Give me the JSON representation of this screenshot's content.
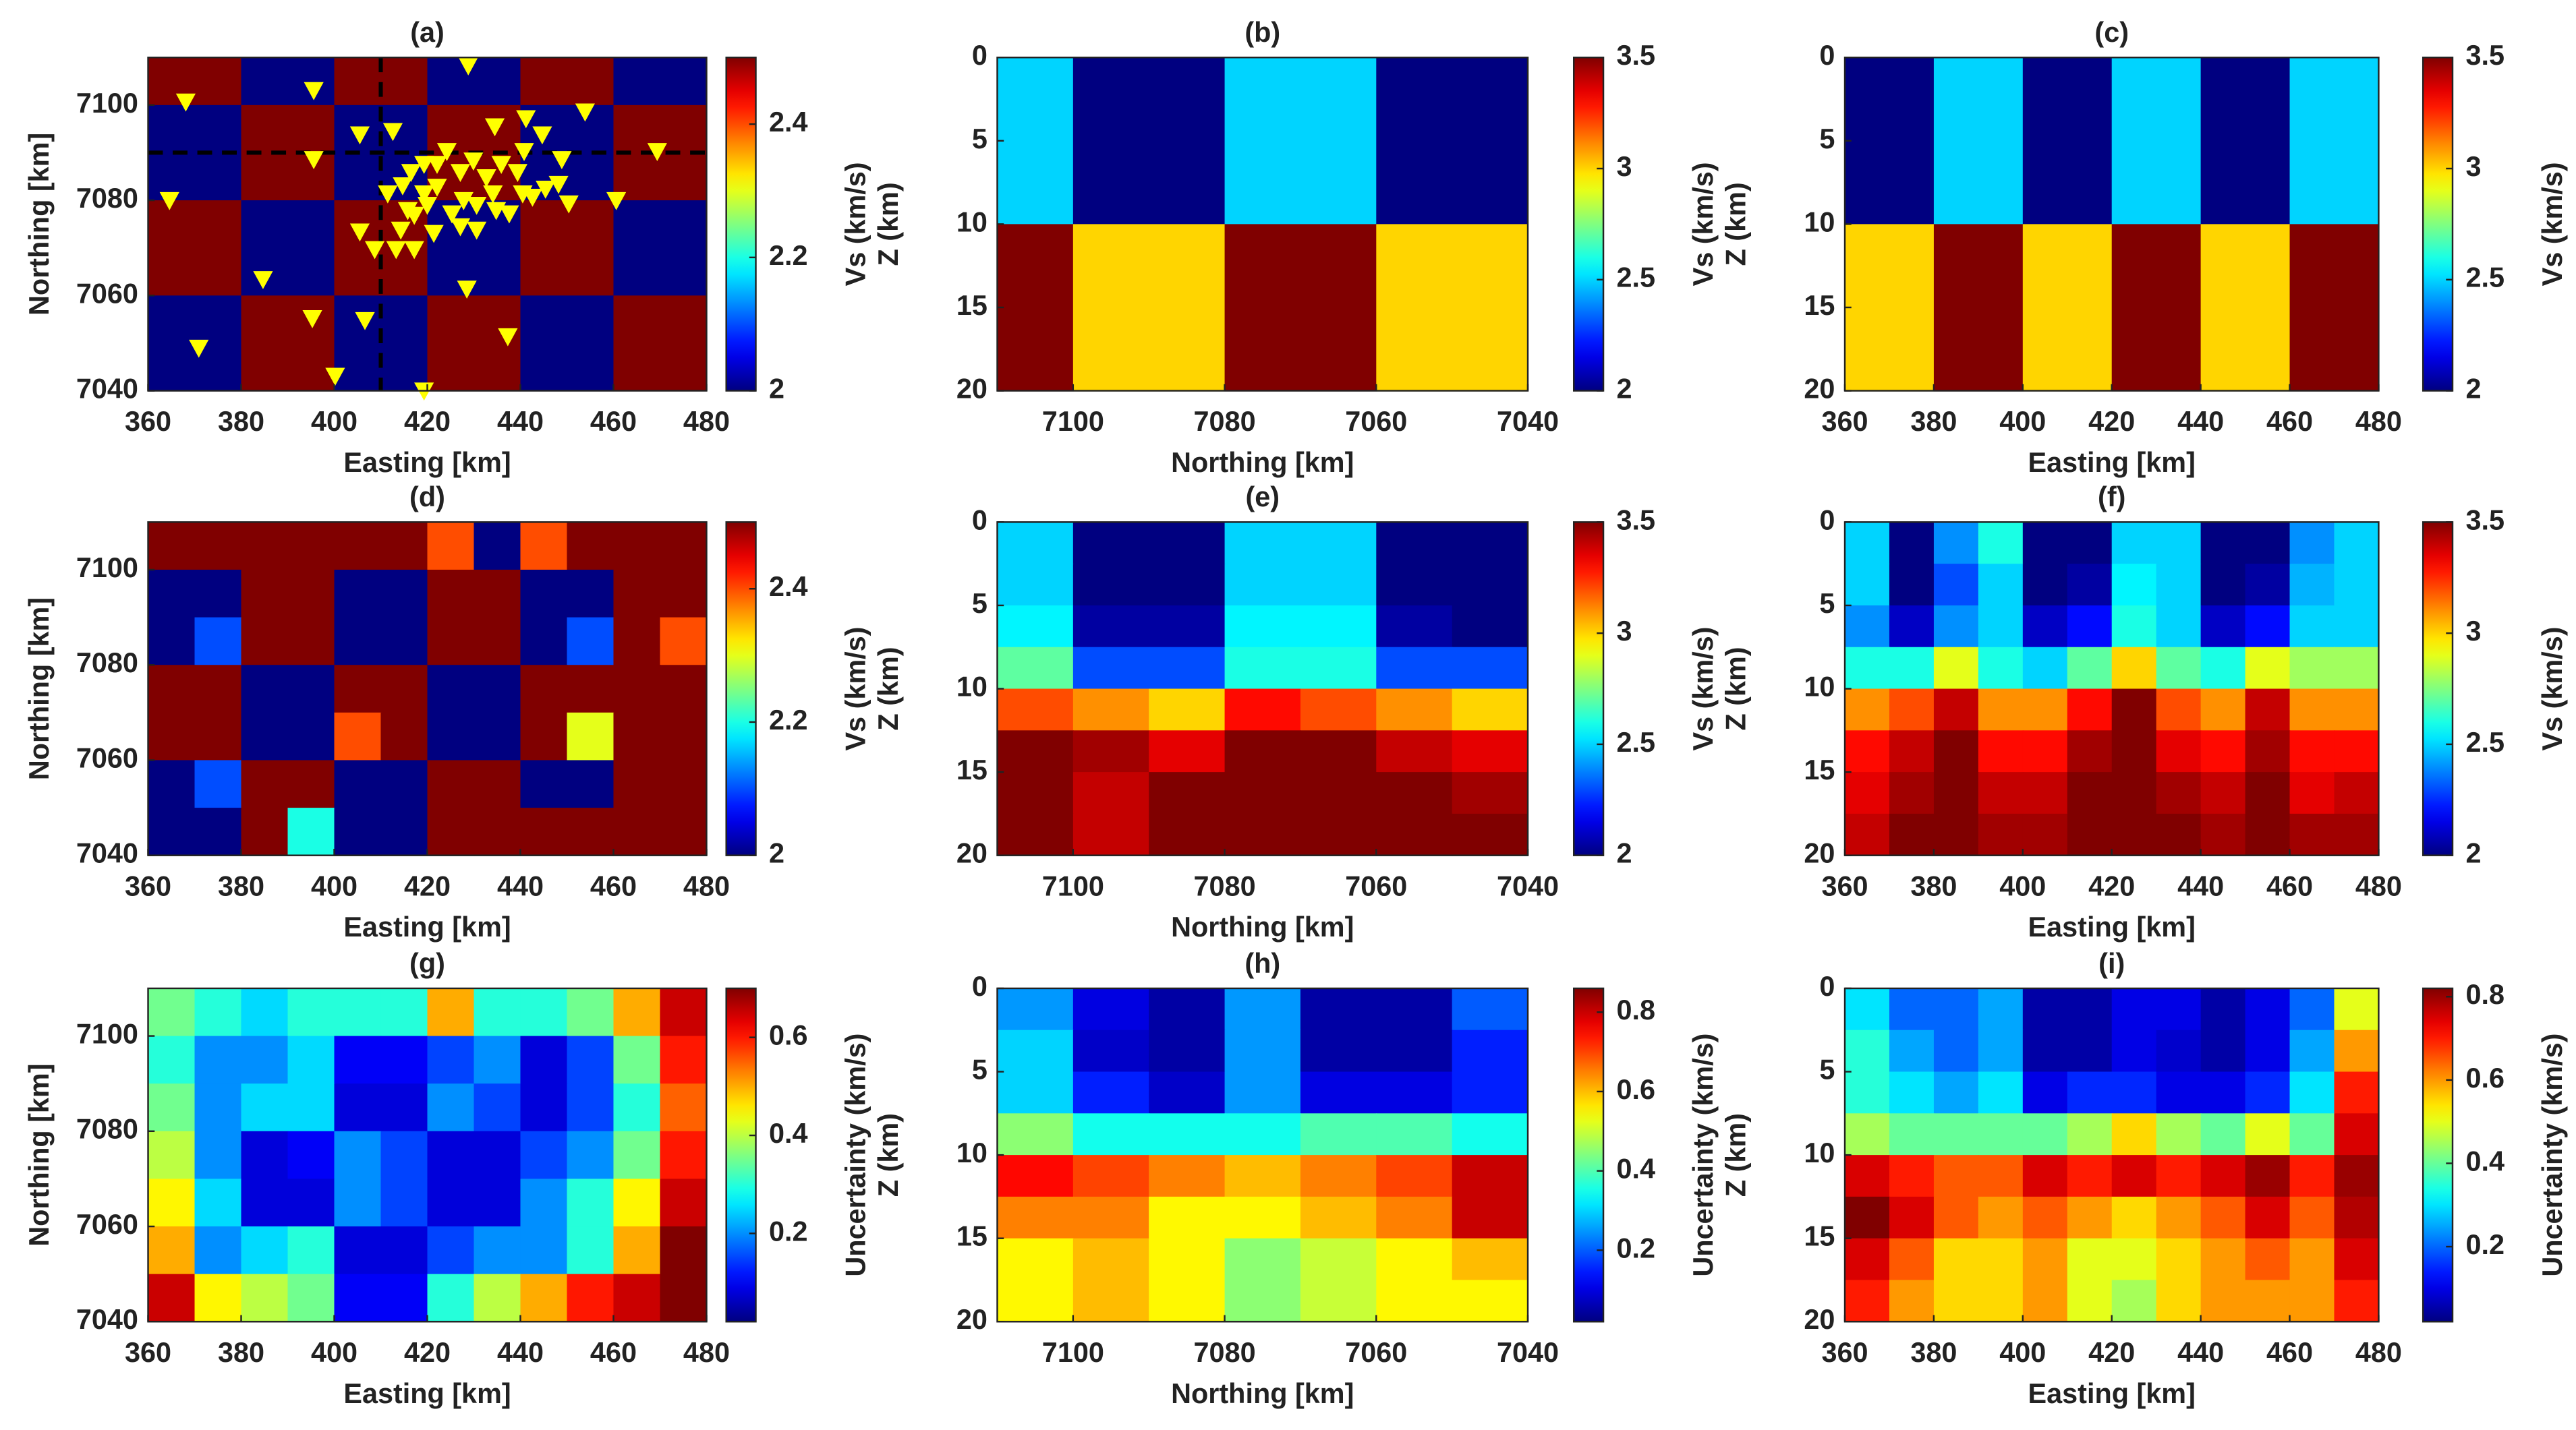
{
  "chart_data": [
    {
      "type": "heatmap",
      "title": "(a)",
      "xlabel": "Easting [km]",
      "ylabel": "Northing [km]",
      "clabel": "Vs (km/s)",
      "colormap": "jet",
      "xlim": [
        360,
        480
      ],
      "ylim": [
        7040,
        7110
      ],
      "xticks": [
        360,
        380,
        400,
        420,
        440,
        460,
        480
      ],
      "yticks": [
        7040,
        7060,
        7080,
        7100
      ],
      "clim": [
        2,
        2.5
      ],
      "cticks": [
        2,
        2.2,
        2.4
      ],
      "x": [
        360,
        380,
        400,
        420,
        440,
        460,
        480
      ],
      "y": [
        7110,
        7100,
        7080,
        7060,
        7040
      ],
      "values": [
        [
          2.5,
          2,
          2.5,
          2,
          2.5,
          2
        ],
        [
          2,
          2.5,
          2,
          2.5,
          2,
          2.5
        ],
        [
          2.5,
          2,
          2.5,
          2,
          2.5,
          2
        ],
        [
          2,
          2.5,
          2,
          2.5,
          2,
          2.5
        ]
      ],
      "profile_lines": {
        "x": 410,
        "y": 7090
      },
      "stations": {
        "color": "#ffff00",
        "x": [
          368.1,
          370.9,
          364.6,
          384.7,
          395.6,
          395.6,
          395.3,
          400.2,
          405.5,
          405.5,
          406.6,
          412.6,
          413.3,
          419.3,
          428.8,
          428.5,
          434.5,
          437.3,
          441.2,
          440.8,
          448.9,
          453.9,
          460.6,
          469.4,
          444.7,
          448.2,
          450.4,
          445.4,
          442.6,
          439.4,
          435.9,
          432.7,
          429.9,
          427.1,
          424.2,
          422.1,
          419.3,
          416.5,
          414.7,
          415.8,
          414.3,
          417.2,
          420.0,
          421.4,
          425.3,
          427.8,
          430.6,
          434.1,
          437.6,
          440.5,
          419.3,
          417.2,
          422.1,
          427.1,
          430.6,
          434.8,
          408.7,
          411.5
        ],
        "y": [
          7100.7,
          7049.0,
          7080.0,
          7063.4,
          7088.6,
          7103.1,
          7055.2,
          7043.1,
          7093.8,
          7073.4,
          7054.8,
          7094.5,
          7069.7,
          7040.0,
          7108.3,
          7061.4,
          7095.5,
          7051.4,
          7097.2,
          7090.3,
          7088.6,
          7098.6,
          7080.0,
          7090.3,
          7093.8,
          7083.4,
          7079.3,
          7082.4,
          7080.7,
          7085.9,
          7087.6,
          7084.8,
          7088.3,
          7085.9,
          7090.3,
          7082.8,
          7087.6,
          7085.9,
          7083.1,
          7077.9,
          7073.8,
          7076.9,
          7079.0,
          7073.1,
          7077.2,
          7080.0,
          7079.0,
          7081.4,
          7077.2,
          7081.4,
          7081.4,
          7069.7,
          7087.6,
          7074.5,
          7073.8,
          7077.9,
          7069.7,
          7081.4
        ]
      }
    },
    {
      "type": "heatmap",
      "title": "(b)",
      "xlabel": "Northing [km]",
      "ylabel": "Z (km)",
      "clabel": "Vs (km/s)",
      "colormap": "jet",
      "xlim": [
        7110,
        7040
      ],
      "ylim": [
        20,
        0
      ],
      "xticks": [
        7100,
        7080,
        7060,
        7040
      ],
      "yticks": [
        0,
        5,
        10,
        15,
        20
      ],
      "clim": [
        2,
        3.5
      ],
      "cticks": [
        2,
        2.5,
        3,
        3.5
      ],
      "x": [
        7110,
        7100,
        7080,
        7060,
        7040
      ],
      "y": [
        0,
        10,
        20
      ],
      "values": [
        [
          2.5,
          2,
          2.5,
          2
        ],
        [
          3.5,
          3,
          3.5,
          3
        ]
      ]
    },
    {
      "type": "heatmap",
      "title": "(c)",
      "xlabel": "Easting [km]",
      "ylabel": "Z (km)",
      "clabel": "Vs (km/s)",
      "colormap": "jet",
      "xlim": [
        360,
        480
      ],
      "ylim": [
        20,
        0
      ],
      "xticks": [
        360,
        380,
        400,
        420,
        440,
        460,
        480
      ],
      "yticks": [
        0,
        5,
        10,
        15,
        20
      ],
      "clim": [
        2,
        3.5
      ],
      "cticks": [
        2,
        2.5,
        3,
        3.5
      ],
      "x": [
        360,
        380,
        400,
        420,
        440,
        460,
        480
      ],
      "y": [
        0,
        10,
        20
      ],
      "values": [
        [
          2,
          2.5,
          2,
          2.5,
          2,
          2.5
        ],
        [
          3,
          3.5,
          3,
          3.5,
          3,
          3.5
        ]
      ]
    },
    {
      "type": "heatmap",
      "title": "(d)",
      "xlabel": "Easting [km]",
      "ylabel": "Northing [km]",
      "clabel": "Vs (km/s)",
      "colormap": "jet",
      "xlim": [
        360,
        480
      ],
      "ylim": [
        7040,
        7110
      ],
      "xticks": [
        360,
        380,
        400,
        420,
        440,
        460,
        480
      ],
      "yticks": [
        7040,
        7060,
        7080,
        7100
      ],
      "clim": [
        2,
        2.5
      ],
      "cticks": [
        2,
        2.2,
        2.4
      ],
      "x": [
        360,
        370,
        380,
        390,
        400,
        410,
        420,
        430,
        440,
        450,
        460,
        470,
        480
      ],
      "y": [
        7110,
        7100,
        7090,
        7080,
        7070,
        7060,
        7050,
        7040
      ],
      "values": [
        [
          2.5,
          2.5,
          2.5,
          2.5,
          2.5,
          2.5,
          2.4,
          2.0,
          2.4,
          2.5,
          2.5,
          2.5
        ],
        [
          2.0,
          2.0,
          2.5,
          2.5,
          2.0,
          2.0,
          2.5,
          2.5,
          2.0,
          2.0,
          2.5,
          2.5
        ],
        [
          2.0,
          2.1,
          2.5,
          2.5,
          2.0,
          2.0,
          2.5,
          2.5,
          2.0,
          2.1,
          2.5,
          2.4
        ],
        [
          2.5,
          2.5,
          2.0,
          2.0,
          2.5,
          2.5,
          2.0,
          2.0,
          2.5,
          2.5,
          2.5,
          2.5
        ],
        [
          2.5,
          2.5,
          2.0,
          2.0,
          2.4,
          2.5,
          2.0,
          2.0,
          2.5,
          2.3,
          2.5,
          2.5
        ],
        [
          2.0,
          2.1,
          2.5,
          2.5,
          2.0,
          2.0,
          2.5,
          2.5,
          2.0,
          2.0,
          2.5,
          2.5
        ],
        [
          2.0,
          2.0,
          2.5,
          2.2,
          2.0,
          2.0,
          2.5,
          2.5,
          2.5,
          2.5,
          2.5,
          2.5
        ]
      ]
    },
    {
      "type": "heatmap",
      "title": "(e)",
      "xlabel": "Northing [km]",
      "ylabel": "Z (km)",
      "clabel": "Vs (km/s)",
      "colormap": "jet",
      "xlim": [
        7110,
        7040
      ],
      "ylim": [
        20,
        0
      ],
      "xticks": [
        7100,
        7080,
        7060,
        7040
      ],
      "yticks": [
        0,
        5,
        10,
        15,
        20
      ],
      "clim": [
        2,
        3.5
      ],
      "cticks": [
        2,
        2.5,
        3,
        3.5
      ],
      "x": [
        7110,
        7100,
        7090,
        7080,
        7070,
        7060,
        7050,
        7040
      ],
      "y": [
        0,
        2.5,
        5,
        7.5,
        10,
        12.5,
        15,
        17.5,
        20
      ],
      "values": [
        [
          2.5,
          2.0,
          2.0,
          2.5,
          2.5,
          2.0,
          2.0
        ],
        [
          2.5,
          2.0,
          2.0,
          2.5,
          2.5,
          2.0,
          2.0
        ],
        [
          2.55,
          2.05,
          2.05,
          2.55,
          2.55,
          2.05,
          2.0
        ],
        [
          2.7,
          2.3,
          2.3,
          2.6,
          2.6,
          2.3,
          2.3
        ],
        [
          3.2,
          3.1,
          3.0,
          3.3,
          3.2,
          3.1,
          3.0
        ],
        [
          3.5,
          3.45,
          3.35,
          3.5,
          3.5,
          3.4,
          3.35
        ],
        [
          3.5,
          3.4,
          3.5,
          3.5,
          3.5,
          3.5,
          3.45
        ],
        [
          3.5,
          3.4,
          3.5,
          3.5,
          3.5,
          3.5,
          3.5
        ]
      ]
    },
    {
      "type": "heatmap",
      "title": "(f)",
      "xlabel": "Easting [km]",
      "ylabel": "Z (km)",
      "clabel": "Vs (km/s)",
      "colormap": "jet",
      "xlim": [
        360,
        480
      ],
      "ylim": [
        20,
        0
      ],
      "xticks": [
        360,
        380,
        400,
        420,
        440,
        460,
        480
      ],
      "yticks": [
        0,
        5,
        10,
        15,
        20
      ],
      "clim": [
        2,
        3.5
      ],
      "cticks": [
        2,
        2.5,
        3,
        3.5
      ],
      "x": [
        360,
        370,
        380,
        390,
        400,
        410,
        420,
        430,
        440,
        450,
        460,
        470,
        480
      ],
      "y": [
        0,
        2.5,
        5,
        7.5,
        10,
        12.5,
        15,
        17.5,
        20
      ],
      "values": [
        [
          2.5,
          2.0,
          2.4,
          2.6,
          2.0,
          2.0,
          2.5,
          2.5,
          2.0,
          2.0,
          2.4,
          2.5
        ],
        [
          2.5,
          2.0,
          2.3,
          2.5,
          2.0,
          2.05,
          2.55,
          2.5,
          2.0,
          2.05,
          2.45,
          2.5
        ],
        [
          2.4,
          2.1,
          2.4,
          2.5,
          2.1,
          2.2,
          2.6,
          2.5,
          2.1,
          2.2,
          2.5,
          2.5
        ],
        [
          2.6,
          2.6,
          2.9,
          2.6,
          2.5,
          2.7,
          3.0,
          2.7,
          2.6,
          2.9,
          2.8,
          2.8
        ],
        [
          3.1,
          3.2,
          3.4,
          3.1,
          3.1,
          3.3,
          3.5,
          3.2,
          3.1,
          3.4,
          3.1,
          3.1
        ],
        [
          3.3,
          3.4,
          3.5,
          3.3,
          3.3,
          3.45,
          3.5,
          3.35,
          3.3,
          3.45,
          3.3,
          3.3
        ],
        [
          3.35,
          3.45,
          3.5,
          3.4,
          3.4,
          3.5,
          3.5,
          3.45,
          3.4,
          3.5,
          3.35,
          3.4
        ],
        [
          3.4,
          3.5,
          3.5,
          3.45,
          3.45,
          3.5,
          3.5,
          3.5,
          3.45,
          3.5,
          3.45,
          3.45
        ]
      ]
    },
    {
      "type": "heatmap",
      "title": "(g)",
      "xlabel": "Easting [km]",
      "ylabel": "Northing [km]",
      "clabel": "Uncertainty (km/s)",
      "colormap": "jet",
      "xlim": [
        360,
        480
      ],
      "ylim": [
        7040,
        7110
      ],
      "xticks": [
        360,
        380,
        400,
        420,
        440,
        460,
        480
      ],
      "yticks": [
        7040,
        7060,
        7080,
        7100
      ],
      "clim": [
        0.02,
        0.7
      ],
      "cticks": [
        0.2,
        0.4,
        0.6
      ],
      "x": [
        360,
        370,
        380,
        390,
        400,
        410,
        420,
        430,
        440,
        450,
        460,
        470,
        480
      ],
      "y": [
        7110,
        7100,
        7090,
        7080,
        7070,
        7060,
        7050,
        7040
      ],
      "values": [
        [
          0.35,
          0.3,
          0.25,
          0.3,
          0.3,
          0.3,
          0.5,
          0.3,
          0.3,
          0.35,
          0.5,
          0.65
        ],
        [
          0.3,
          0.2,
          0.2,
          0.25,
          0.1,
          0.1,
          0.15,
          0.2,
          0.08,
          0.15,
          0.35,
          0.6
        ],
        [
          0.35,
          0.2,
          0.25,
          0.25,
          0.08,
          0.08,
          0.2,
          0.15,
          0.08,
          0.15,
          0.3,
          0.55
        ],
        [
          0.4,
          0.2,
          0.08,
          0.1,
          0.2,
          0.15,
          0.08,
          0.08,
          0.15,
          0.2,
          0.35,
          0.6
        ],
        [
          0.45,
          0.25,
          0.08,
          0.08,
          0.2,
          0.15,
          0.08,
          0.08,
          0.2,
          0.3,
          0.45,
          0.65
        ],
        [
          0.5,
          0.2,
          0.25,
          0.3,
          0.08,
          0.08,
          0.15,
          0.2,
          0.2,
          0.3,
          0.5,
          0.7
        ],
        [
          0.65,
          0.45,
          0.4,
          0.35,
          0.1,
          0.1,
          0.3,
          0.4,
          0.5,
          0.6,
          0.65,
          0.7
        ]
      ]
    },
    {
      "type": "heatmap",
      "title": "(h)",
      "xlabel": "Northing [km]",
      "ylabel": "Z (km)",
      "clabel": "Uncertainty (km/s)",
      "colormap": "jet",
      "xlim": [
        7110,
        7040
      ],
      "ylim": [
        20,
        0
      ],
      "xticks": [
        7100,
        7080,
        7060,
        7040
      ],
      "yticks": [
        0,
        5,
        10,
        15,
        20
      ],
      "clim": [
        0.02,
        0.86
      ],
      "cticks": [
        0.2,
        0.4,
        0.6,
        0.8
      ],
      "x": [
        7110,
        7100,
        7090,
        7080,
        7070,
        7060,
        7050,
        7040
      ],
      "y": [
        0,
        2.5,
        5,
        7.5,
        10,
        12.5,
        15,
        17.5,
        20
      ],
      "values": [
        [
          0.25,
          0.1,
          0.05,
          0.25,
          0.05,
          0.05,
          0.2
        ],
        [
          0.3,
          0.08,
          0.05,
          0.25,
          0.05,
          0.05,
          0.15
        ],
        [
          0.3,
          0.15,
          0.08,
          0.25,
          0.1,
          0.1,
          0.15
        ],
        [
          0.45,
          0.35,
          0.35,
          0.35,
          0.4,
          0.4,
          0.35
        ],
        [
          0.75,
          0.7,
          0.65,
          0.6,
          0.65,
          0.7,
          0.8
        ],
        [
          0.65,
          0.65,
          0.55,
          0.55,
          0.6,
          0.65,
          0.8
        ],
        [
          0.55,
          0.6,
          0.55,
          0.45,
          0.5,
          0.55,
          0.6
        ],
        [
          0.55,
          0.6,
          0.55,
          0.45,
          0.5,
          0.55,
          0.55
        ]
      ]
    },
    {
      "type": "heatmap",
      "title": "(i)",
      "xlabel": "Easting [km]",
      "ylabel": "Z (km)",
      "clabel": "Uncertainty (km/s)",
      "colormap": "jet",
      "xlim": [
        360,
        480
      ],
      "ylim": [
        20,
        0
      ],
      "xticks": [
        360,
        380,
        400,
        420,
        440,
        460,
        480
      ],
      "yticks": [
        0,
        5,
        10,
        15,
        20
      ],
      "clim": [
        0.02,
        0.82
      ],
      "cticks": [
        0.2,
        0.4,
        0.6,
        0.8
      ],
      "x": [
        360,
        370,
        380,
        390,
        400,
        410,
        420,
        430,
        440,
        450,
        460,
        470,
        480
      ],
      "y": [
        0,
        2.5,
        5,
        7.5,
        10,
        12.5,
        15,
        17.5,
        20
      ],
      "values": [
        [
          0.3,
          0.2,
          0.2,
          0.25,
          0.05,
          0.05,
          0.1,
          0.1,
          0.05,
          0.1,
          0.2,
          0.5
        ],
        [
          0.35,
          0.25,
          0.2,
          0.25,
          0.05,
          0.05,
          0.1,
          0.08,
          0.05,
          0.1,
          0.25,
          0.6
        ],
        [
          0.35,
          0.3,
          0.25,
          0.3,
          0.1,
          0.15,
          0.15,
          0.1,
          0.1,
          0.15,
          0.3,
          0.7
        ],
        [
          0.45,
          0.4,
          0.4,
          0.4,
          0.4,
          0.45,
          0.55,
          0.45,
          0.4,
          0.5,
          0.4,
          0.75
        ],
        [
          0.75,
          0.7,
          0.65,
          0.65,
          0.75,
          0.7,
          0.75,
          0.7,
          0.75,
          0.8,
          0.7,
          0.8
        ],
        [
          0.82,
          0.75,
          0.65,
          0.6,
          0.65,
          0.6,
          0.55,
          0.6,
          0.65,
          0.75,
          0.65,
          0.78
        ],
        [
          0.75,
          0.65,
          0.55,
          0.55,
          0.6,
          0.5,
          0.5,
          0.55,
          0.6,
          0.65,
          0.6,
          0.75
        ],
        [
          0.7,
          0.6,
          0.55,
          0.55,
          0.6,
          0.5,
          0.45,
          0.55,
          0.6,
          0.6,
          0.6,
          0.7
        ]
      ]
    }
  ]
}
